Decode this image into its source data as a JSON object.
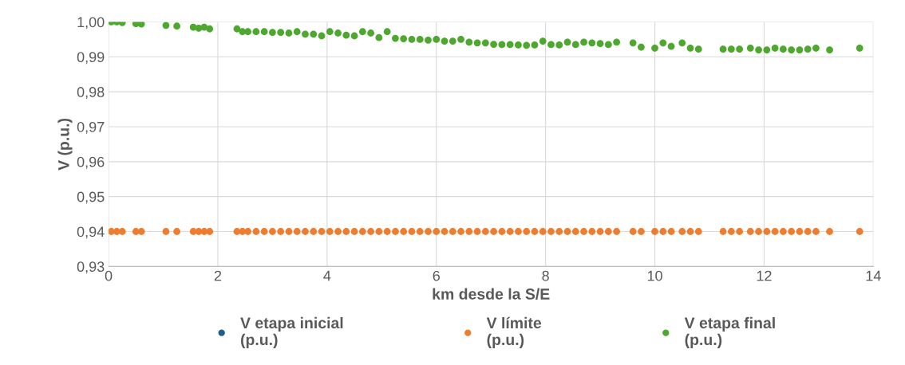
{
  "chart_data": {
    "type": "scatter",
    "xlabel": "km desde la S/E",
    "ylabel": "V (p.u.)",
    "xlim": [
      0,
      14
    ],
    "xticks": [
      0,
      2,
      4,
      6,
      8,
      10,
      12,
      14
    ],
    "ylim": [
      0.93,
      1.0
    ],
    "yticks": [
      {
        "value": 0.93,
        "label": "0,93"
      },
      {
        "value": 0.94,
        "label": "0,94"
      },
      {
        "value": 0.95,
        "label": "0,95"
      },
      {
        "value": 0.96,
        "label": "0,96"
      },
      {
        "value": 0.97,
        "label": "0,97"
      },
      {
        "value": 0.98,
        "label": "0,98"
      },
      {
        "value": 0.99,
        "label": "0,99"
      },
      {
        "value": 1.0,
        "label": "1,00"
      }
    ],
    "grid": true,
    "legend": "bottom",
    "marker": "circle",
    "x": [
      0.05,
      0.15,
      0.25,
      0.5,
      0.6,
      1.05,
      1.25,
      1.55,
      1.65,
      1.75,
      1.85,
      2.35,
      2.45,
      2.55,
      2.7,
      2.85,
      3.0,
      3.15,
      3.3,
      3.45,
      3.6,
      3.75,
      3.9,
      4.05,
      4.2,
      4.35,
      4.5,
      4.65,
      4.8,
      4.95,
      5.1,
      5.25,
      5.4,
      5.55,
      5.7,
      5.85,
      6.0,
      6.15,
      6.3,
      6.45,
      6.6,
      6.75,
      6.9,
      7.05,
      7.2,
      7.35,
      7.5,
      7.65,
      7.8,
      7.95,
      8.1,
      8.25,
      8.4,
      8.55,
      8.7,
      8.85,
      9.0,
      9.15,
      9.3,
      9.6,
      9.75,
      10.0,
      10.15,
      10.3,
      10.5,
      10.65,
      10.8,
      11.25,
      11.4,
      11.55,
      11.75,
      11.9,
      12.05,
      12.2,
      12.35,
      12.5,
      12.65,
      12.8,
      12.95,
      13.2,
      13.75
    ],
    "series": [
      {
        "name": "V etapa inicial\n(p.u.)",
        "color": "#1f5f87",
        "values": [
          null,
          null,
          null,
          null,
          null,
          null,
          null,
          null,
          null,
          null,
          null,
          null,
          null,
          null,
          null,
          null,
          null,
          null,
          null,
          null,
          null,
          null,
          null,
          null,
          null,
          null,
          null,
          null,
          null,
          null,
          null,
          null,
          null,
          null,
          null,
          null,
          null,
          null,
          null,
          null,
          null,
          null,
          null,
          null,
          null,
          null,
          null,
          null,
          null,
          null,
          null,
          null,
          null,
          null,
          null,
          null,
          null,
          null,
          null,
          null,
          null,
          null,
          null,
          null,
          null,
          null,
          null,
          null,
          null,
          null,
          null,
          null,
          null,
          null,
          null,
          null,
          null,
          null,
          null,
          null,
          null
        ]
      },
      {
        "name": "V límite\n(p.u.)",
        "color": "#ed7d31",
        "values": [
          0.94,
          0.94,
          0.94,
          0.94,
          0.94,
          0.94,
          0.94,
          0.94,
          0.94,
          0.94,
          0.94,
          0.94,
          0.94,
          0.94,
          0.94,
          0.94,
          0.94,
          0.94,
          0.94,
          0.94,
          0.94,
          0.94,
          0.94,
          0.94,
          0.94,
          0.94,
          0.94,
          0.94,
          0.94,
          0.94,
          0.94,
          0.94,
          0.94,
          0.94,
          0.94,
          0.94,
          0.94,
          0.94,
          0.94,
          0.94,
          0.94,
          0.94,
          0.94,
          0.94,
          0.94,
          0.94,
          0.94,
          0.94,
          0.94,
          0.94,
          0.94,
          0.94,
          0.94,
          0.94,
          0.94,
          0.94,
          0.94,
          0.94,
          0.94,
          0.94,
          0.94,
          0.94,
          0.94,
          0.94,
          0.94,
          0.94,
          0.94,
          0.94,
          0.94,
          0.94,
          0.94,
          0.94,
          0.94,
          0.94,
          0.94,
          0.94,
          0.94,
          0.94,
          0.94,
          0.94,
          0.94
        ]
      },
      {
        "name": "V etapa final\n(p.u.)",
        "color": "#4ea72e",
        "values": [
          1.0,
          1.0,
          0.9998,
          0.9995,
          0.9994,
          0.999,
          0.9988,
          0.9985,
          0.9982,
          0.9985,
          0.998,
          0.998,
          0.9972,
          0.9972,
          0.9972,
          0.9972,
          0.997,
          0.997,
          0.9968,
          0.9972,
          0.9965,
          0.9965,
          0.996,
          0.9972,
          0.9968,
          0.9962,
          0.996,
          0.9972,
          0.9968,
          0.9955,
          0.9972,
          0.9953,
          0.9952,
          0.995,
          0.995,
          0.9948,
          0.995,
          0.9945,
          0.9945,
          0.995,
          0.9942,
          0.994,
          0.994,
          0.9936,
          0.9935,
          0.9935,
          0.9934,
          0.9933,
          0.9934,
          0.9945,
          0.9935,
          0.9934,
          0.9942,
          0.9935,
          0.9942,
          0.994,
          0.9938,
          0.9935,
          0.9942,
          0.994,
          0.9928,
          0.9925,
          0.994,
          0.993,
          0.994,
          0.9925,
          0.9922,
          0.9922,
          0.9922,
          0.9922,
          0.9925,
          0.992,
          0.992,
          0.9925,
          0.9922,
          0.992,
          0.992,
          0.9922,
          0.9925,
          0.992,
          0.9925
        ]
      }
    ]
  }
}
